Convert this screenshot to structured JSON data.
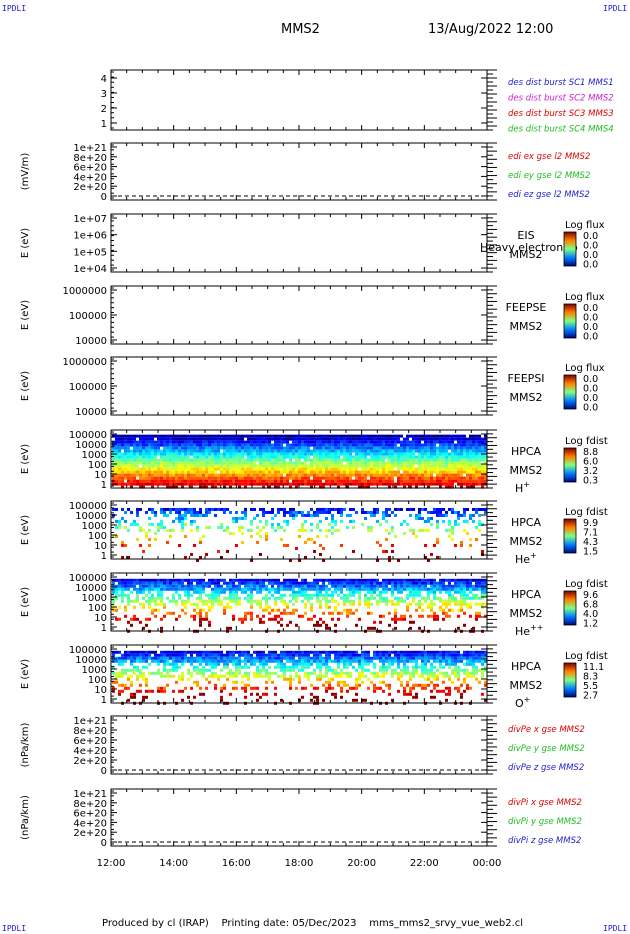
{
  "header": {
    "corner_label": "IPDLI",
    "title_left": "MMS2",
    "title_right": "13/Aug/2022 12:00"
  },
  "footer": {
    "produced_by": "Produced by cl (IRAP)",
    "printing_date": "Printing date: 05/Dec/2023",
    "file": "mms_mms2_srvy_vue_web2.cl"
  },
  "x_axis": {
    "ticks": [
      "12:00",
      "14:00",
      "16:00",
      "18:00",
      "20:00",
      "22:00",
      "00:00"
    ],
    "range_hours": [
      12,
      24
    ]
  },
  "chart_data": [
    {
      "type": "line",
      "id": "des_dist",
      "ylabel": "",
      "ylim": [
        0.5,
        4.5
      ],
      "yticks": [
        "4",
        "3",
        "2",
        "1"
      ],
      "legend": [
        {
          "name": "des dist burst SC1 MMS1",
          "color": "#2020cc"
        },
        {
          "name": "des dist burst SC2 MMS2",
          "color": "#cc20cc"
        },
        {
          "name": "des dist burst SC3 MMS3",
          "color": "#dd0000"
        },
        {
          "name": "des dist burst SC4 MMS4",
          "color": "#20bb20"
        }
      ],
      "series": []
    },
    {
      "type": "line",
      "id": "edi_e",
      "ylabel": "(mV/m)",
      "yticks": [
        "1e+21",
        "8e+20",
        "6e+20",
        "4e+20",
        "2e+20",
        "0"
      ],
      "zero_line": true,
      "legend": [
        {
          "name": "edi ex gse l2 MMS2",
          "color": "#dd0000"
        },
        {
          "name": "edi ey gse l2 MMS2",
          "color": "#20bb20"
        },
        {
          "name": "edi ez gse l2 MMS2",
          "color": "#2020cc"
        }
      ],
      "series": []
    },
    {
      "type": "heatmap",
      "id": "eis",
      "ylabel": "E (eV)",
      "yticks": [
        "1e+07",
        "1e+06",
        "1e+05",
        "1e+04"
      ],
      "instrument": [
        "EIS",
        "MMS2"
      ],
      "species": "",
      "overlap_text": "Heavy electron to",
      "colorbar": {
        "label": "Log flux",
        "ticks": [
          "0.0",
          "0.0",
          "0.0",
          "0.0"
        ]
      },
      "filled": false
    },
    {
      "type": "heatmap",
      "id": "feepse",
      "ylabel": "E (eV)",
      "yticks": [
        "1000000",
        "100000",
        "10000"
      ],
      "instrument": [
        "FEEPSE",
        "MMS2"
      ],
      "species": "",
      "colorbar": {
        "label": "Log flux",
        "ticks": [
          "0.0",
          "0.0",
          "0.0",
          "0.0"
        ]
      },
      "filled": false
    },
    {
      "type": "heatmap",
      "id": "feepsi",
      "ylabel": "E (eV)",
      "yticks": [
        "1000000",
        "100000",
        "10000"
      ],
      "instrument": [
        "FEEPSI",
        "MMS2"
      ],
      "species": "",
      "colorbar": {
        "label": "Log flux",
        "ticks": [
          "0.0",
          "0.0",
          "0.0",
          "0.0"
        ]
      },
      "filled": false
    },
    {
      "type": "heatmap",
      "id": "hpca_h",
      "ylabel": "E (eV)",
      "yticks": [
        "100000",
        "10000",
        "1000",
        "100",
        "10",
        "1"
      ],
      "instrument": [
        "HPCA",
        "MMS2"
      ],
      "species": "H",
      "species_sup": "+",
      "colorbar": {
        "label": "Log fdist",
        "ticks": [
          "8.8",
          "6.0",
          "3.2",
          "0.3"
        ]
      },
      "filled": true,
      "pattern": "dense",
      "top_frac": 0.08
    },
    {
      "type": "heatmap",
      "id": "hpca_he1",
      "ylabel": "E (eV)",
      "yticks": [
        "100000",
        "10000",
        "1000",
        "100",
        "10",
        "1"
      ],
      "instrument": [
        "HPCA",
        "MMS2"
      ],
      "species": "He",
      "species_sup": "+",
      "colorbar": {
        "label": "Log fdist",
        "ticks": [
          "9.9",
          "7.1",
          "4.3",
          "1.5"
        ]
      },
      "filled": true,
      "pattern": "sparse",
      "top_frac": 0.12
    },
    {
      "type": "heatmap",
      "id": "hpca_he2",
      "ylabel": "E (eV)",
      "yticks": [
        "100000",
        "10000",
        "1000",
        "100",
        "10",
        "1"
      ],
      "instrument": [
        "HPCA",
        "MMS2"
      ],
      "species": "He",
      "species_sup": "++",
      "colorbar": {
        "label": "Log fdist",
        "ticks": [
          "9.6",
          "6.8",
          "4.0",
          "1.2"
        ]
      },
      "filled": true,
      "pattern": "medium",
      "top_frac": 0.1
    },
    {
      "type": "heatmap",
      "id": "hpca_o",
      "ylabel": "E (eV)",
      "yticks": [
        "100000",
        "10000",
        "1000",
        "100",
        "10",
        "1"
      ],
      "instrument": [
        "HPCA",
        "MMS2"
      ],
      "species": "O",
      "species_sup": "+",
      "colorbar": {
        "label": "Log fdist",
        "ticks": [
          "11.1",
          "8.3",
          "5.5",
          "2.7"
        ]
      },
      "filled": true,
      "pattern": "medium",
      "top_frac": 0.1
    },
    {
      "type": "line",
      "id": "divpe",
      "ylabel": "(nPa/km)",
      "yticks": [
        "1e+21",
        "8e+20",
        "6e+20",
        "4e+20",
        "2e+20",
        "0"
      ],
      "zero_line": true,
      "legend": [
        {
          "name": "divPe x gse MMS2",
          "color": "#dd0000"
        },
        {
          "name": "divPe y gse MMS2",
          "color": "#20bb20"
        },
        {
          "name": "divPe z gse MMS2",
          "color": "#2020cc"
        }
      ],
      "series": []
    },
    {
      "type": "line",
      "id": "divpi",
      "ylabel": "(nPa/km)",
      "yticks": [
        "1e+21",
        "8e+20",
        "6e+20",
        "4e+20",
        "2e+20",
        "0"
      ],
      "zero_line": true,
      "legend": [
        {
          "name": "divPi x gse MMS2",
          "color": "#dd0000"
        },
        {
          "name": "divPi y gse MMS2",
          "color": "#20bb20"
        },
        {
          "name": "divPi z gse MMS2",
          "color": "#2020cc"
        }
      ],
      "series": []
    }
  ]
}
